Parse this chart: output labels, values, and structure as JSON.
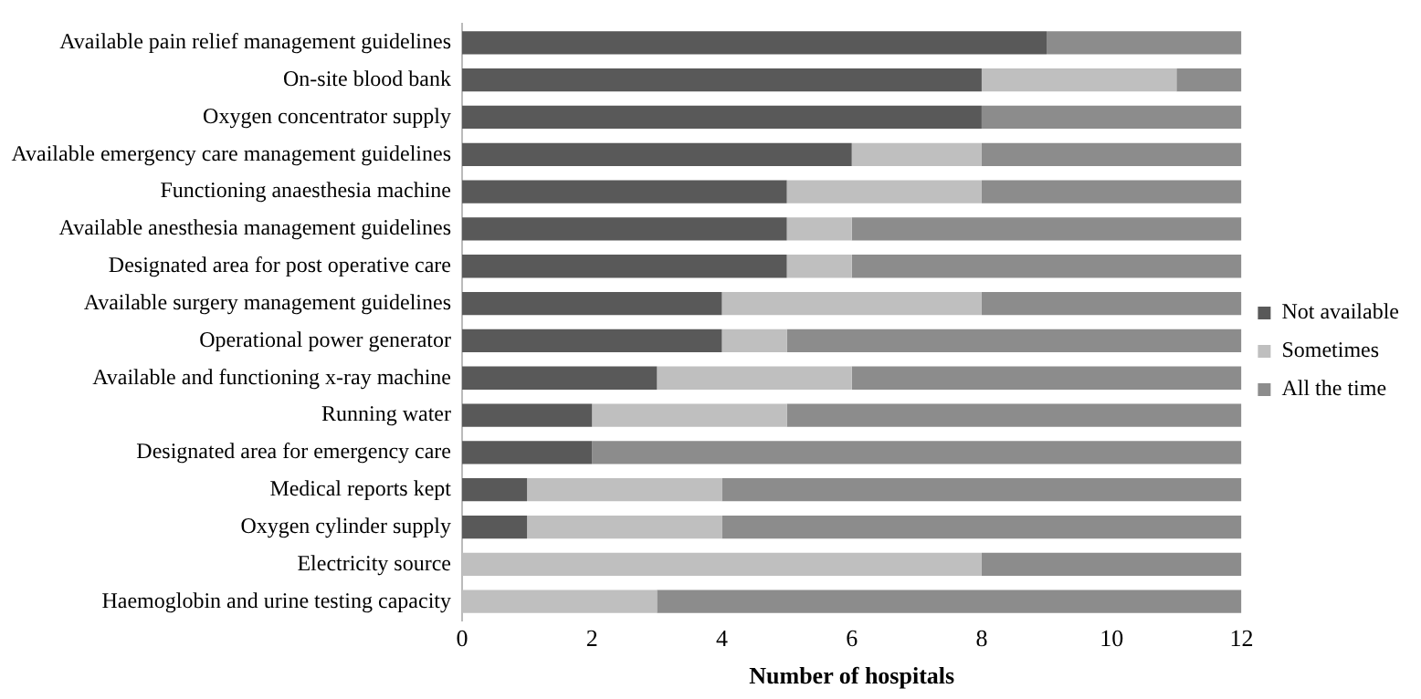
{
  "chart_data": {
    "type": "bar",
    "orientation": "horizontal",
    "stacked": true,
    "xlabel": "Number of hospitals",
    "categories": [
      "Available pain relief management guidelines",
      "On-site blood bank",
      "Oxygen concentrator supply",
      "Available emergency care management guidelines",
      "Functioning anaesthesia machine",
      "Available anesthesia management guidelines",
      "Designated area for post operative care",
      "Available surgery management guidelines",
      "Operational power generator",
      "Available and functioning x-ray machine",
      "Running water",
      "Designated area for emergency care",
      "Medical reports kept",
      "Oxygen cylinder supply",
      "Electricity source",
      "Haemoglobin and urine testing capacity"
    ],
    "series": [
      {
        "name": "Not available",
        "color": "#595959",
        "values": [
          9,
          8,
          8,
          6,
          5,
          5,
          5,
          4,
          4,
          3,
          2,
          2,
          1,
          1,
          0,
          0
        ]
      },
      {
        "name": "Sometimes",
        "color": "#bfbfbf",
        "values": [
          0,
          3,
          0,
          2,
          3,
          1,
          1,
          4,
          1,
          3,
          3,
          0,
          3,
          3,
          8,
          3
        ]
      },
      {
        "name": "All the time",
        "color": "#8c8c8c",
        "values": [
          3,
          1,
          4,
          4,
          4,
          6,
          6,
          4,
          7,
          6,
          7,
          10,
          8,
          8,
          4,
          9
        ]
      }
    ],
    "xlim": [
      0,
      12
    ],
    "xticks": [
      0,
      2,
      4,
      6,
      8,
      10,
      12
    ],
    "grid": false,
    "legend": "right"
  }
}
